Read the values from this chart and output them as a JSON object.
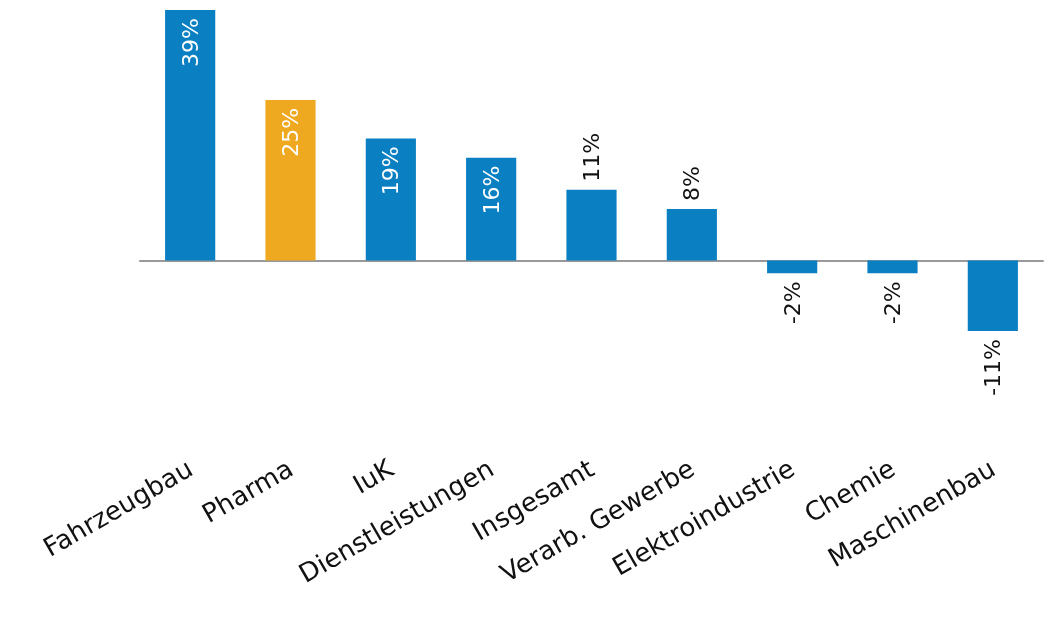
{
  "chart_data": {
    "type": "bar",
    "categories": [
      "Fahrzeugbau",
      "Pharma",
      "IuK",
      "Dienstleistungen",
      "Insgesamt",
      "Verarb. Gewerbe",
      "Elektroindustrie",
      "Chemie",
      "Maschinenbau"
    ],
    "values": [
      39,
      25,
      19,
      16,
      11,
      8,
      -2,
      -2,
      -11
    ],
    "colors": [
      "#0a7fc2",
      "#eea921",
      "#0a7fc2",
      "#0a7fc2",
      "#0a7fc2",
      "#0a7fc2",
      "#0a7fc2",
      "#0a7fc2",
      "#0a7fc2"
    ],
    "value_labels": [
      "39%",
      "25%",
      "19%",
      "16%",
      "11%",
      "8%",
      "-2%",
      "-2%",
      "-11%"
    ],
    "grid": false
  }
}
